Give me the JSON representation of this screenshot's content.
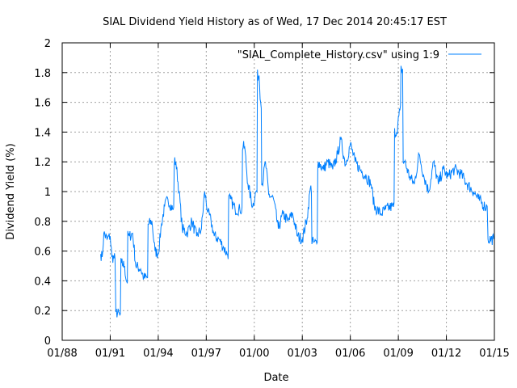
{
  "chart_data": {
    "type": "line",
    "title": "SIAL Dividend Yield History as of Wed, 17 Dec 2014 20:45:17 EST",
    "xlabel": "Date",
    "ylabel": "Dividend Yield (%)",
    "xlim": [
      1988,
      2015
    ],
    "ylim": [
      0,
      2
    ],
    "grid": true,
    "legend_position": "top-right",
    "x_ticks": [
      {
        "value": 1988,
        "label": "01/88"
      },
      {
        "value": 1991,
        "label": "01/91"
      },
      {
        "value": 1994,
        "label": "01/94"
      },
      {
        "value": 1997,
        "label": "01/97"
      },
      {
        "value": 2000,
        "label": "01/00"
      },
      {
        "value": 2003,
        "label": "01/03"
      },
      {
        "value": 2006,
        "label": "01/06"
      },
      {
        "value": 2009,
        "label": "01/09"
      },
      {
        "value": 2012,
        "label": "01/12"
      },
      {
        "value": 2015,
        "label": "01/15"
      }
    ],
    "y_ticks": [
      {
        "value": 0,
        "label": "0"
      },
      {
        "value": 0.2,
        "label": "0.2"
      },
      {
        "value": 0.4,
        "label": "0.4"
      },
      {
        "value": 0.6,
        "label": "0.6"
      },
      {
        "value": 0.8,
        "label": "0.8"
      },
      {
        "value": 1.0,
        "label": "1"
      },
      {
        "value": 1.2,
        "label": "1.2"
      },
      {
        "value": 1.4,
        "label": "1.4"
      },
      {
        "value": 1.6,
        "label": "1.6"
      },
      {
        "value": 1.8,
        "label": "1.8"
      },
      {
        "value": 2.0,
        "label": "2"
      }
    ],
    "series": [
      {
        "name": "\"SIAL_Complete_History.csv\" using 1:9",
        "color": "#0080ff",
        "x": [
          1990.4,
          1990.5,
          1990.6,
          1990.8,
          1991.0,
          1991.1,
          1991.3,
          1991.35,
          1991.6,
          1991.7,
          1991.9,
          1992.0,
          1992.2,
          1992.4,
          1992.6,
          1992.9,
          1993.1,
          1993.3,
          1993.4,
          1993.6,
          1993.8,
          1994.0,
          1994.2,
          1994.4,
          1994.6,
          1994.9,
          1995.1,
          1995.3,
          1995.5,
          1995.8,
          1996.1,
          1996.4,
          1996.7,
          1996.9,
          1997.1,
          1997.3,
          1997.5,
          1997.8,
          1998.1,
          1998.3,
          1998.5,
          1998.8,
          1999.1,
          1999.4,
          1999.6,
          1999.9,
          2000.1,
          2000.3,
          2000.4,
          2000.5,
          2000.7,
          2000.9,
          2001.2,
          2001.5,
          2001.8,
          2002.1,
          2002.4,
          2002.7,
          2003.0,
          2003.3,
          2003.5,
          2003.7,
          2003.9,
          2004.0,
          2004.3,
          2004.6,
          2004.9,
          2005.2,
          2005.4,
          2005.7,
          2006.0,
          2006.3,
          2006.6,
          2007.0,
          2007.3,
          2007.5,
          2007.9,
          2008.2,
          2008.6,
          2008.9,
          2009.1,
          2009.2,
          2009.4,
          2009.7,
          2010.0,
          2010.3,
          2010.6,
          2010.9,
          2011.2,
          2011.5,
          2011.8,
          2012.1,
          2012.5,
          2012.9,
          2013.3,
          2013.7,
          2014.0,
          2014.4,
          2014.55,
          2014.6,
          2014.96
        ],
        "y": [
          0.58,
          0.56,
          0.72,
          0.68,
          0.7,
          0.56,
          0.55,
          0.19,
          0.17,
          0.52,
          0.5,
          0.4,
          0.7,
          0.72,
          0.5,
          0.48,
          0.42,
          0.42,
          0.78,
          0.8,
          0.6,
          0.58,
          0.78,
          0.9,
          0.95,
          0.88,
          1.2,
          1.0,
          0.75,
          0.72,
          0.8,
          0.7,
          0.75,
          1.0,
          0.86,
          0.8,
          0.7,
          0.68,
          0.62,
          0.58,
          0.95,
          0.88,
          0.88,
          1.3,
          1.05,
          0.9,
          1.0,
          1.78,
          1.6,
          1.05,
          1.2,
          0.98,
          0.95,
          0.75,
          0.85,
          0.8,
          0.85,
          0.7,
          0.68,
          0.82,
          1.02,
          0.66,
          0.65,
          1.2,
          1.15,
          1.2,
          1.15,
          1.25,
          1.35,
          1.18,
          1.32,
          1.2,
          1.15,
          1.1,
          1.05,
          0.9,
          0.85,
          0.88,
          0.9,
          1.4,
          1.55,
          1.82,
          1.2,
          1.1,
          1.05,
          1.25,
          1.1,
          1.0,
          1.2,
          1.05,
          1.15,
          1.1,
          1.15,
          1.12,
          1.05,
          1.0,
          0.95,
          0.9,
          0.9,
          0.68,
          0.68
        ]
      }
    ]
  }
}
